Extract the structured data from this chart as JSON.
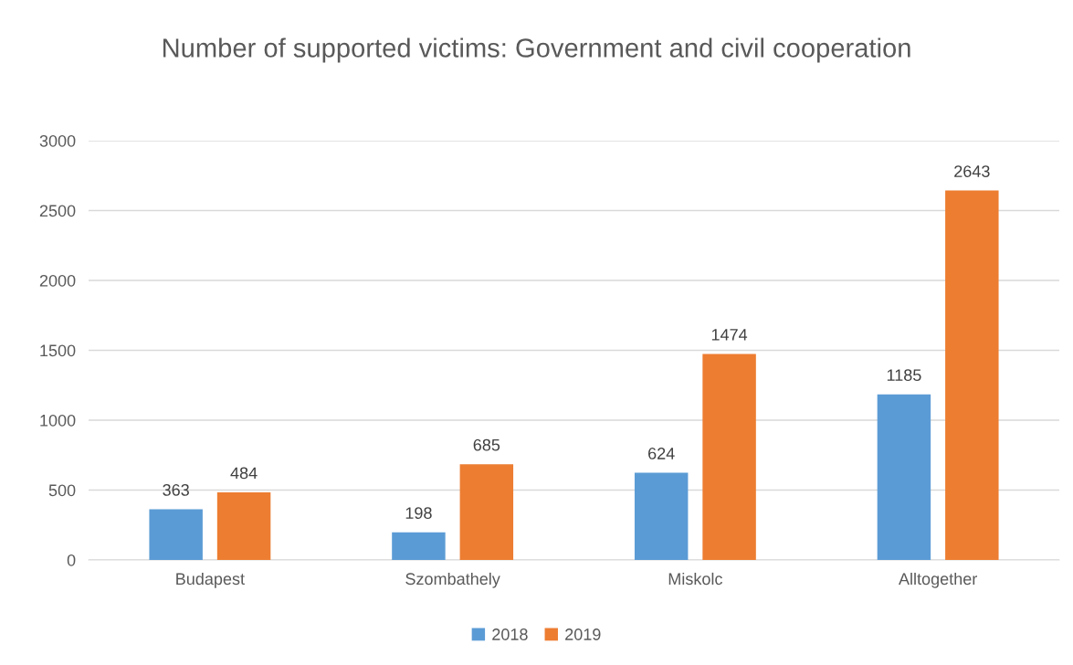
{
  "chart_data": {
    "type": "bar",
    "title": "Number of supported victims: Government and civil cooperation",
    "categories": [
      "Budapest",
      "Szombathely",
      "Miskolc",
      "Alltogether"
    ],
    "series": [
      {
        "name": "2018",
        "color": "#5b9bd5",
        "values": [
          363,
          198,
          624,
          1185
        ]
      },
      {
        "name": "2019",
        "color": "#ed7d31",
        "values": [
          484,
          685,
          1474,
          2643
        ]
      }
    ],
    "ylim": [
      0,
      3000
    ],
    "yticks": [
      0,
      500,
      1000,
      1500,
      2000,
      2500,
      3000
    ],
    "grid": "y",
    "legend": "bottom",
    "data_labels": true
  }
}
